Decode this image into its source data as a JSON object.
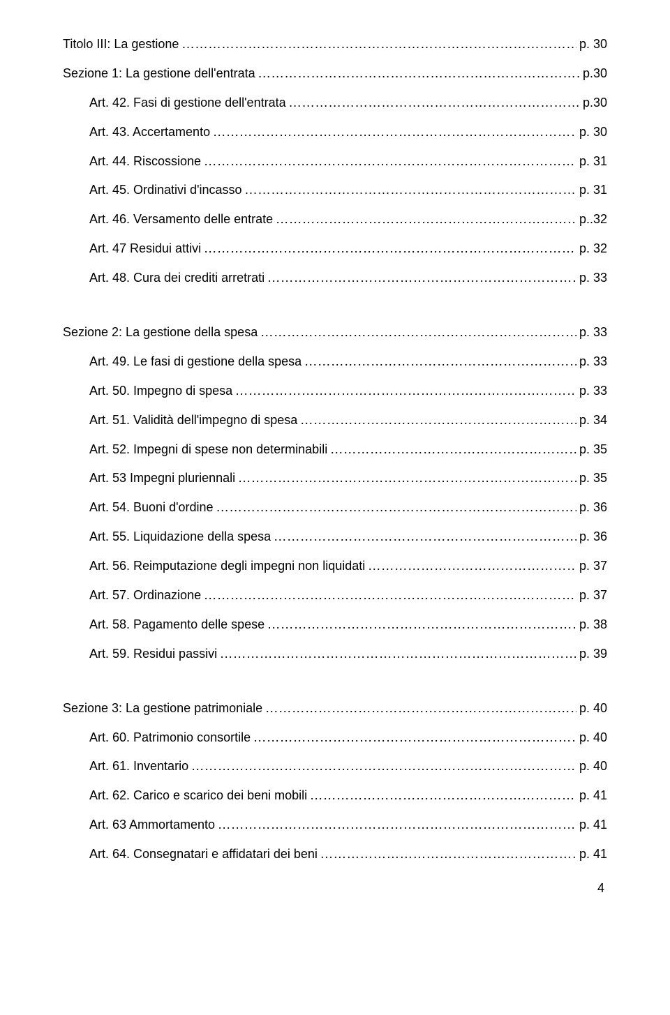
{
  "text_color": "#000000",
  "background_color": "#ffffff",
  "font_family": "Comic Sans MS",
  "base_font_size_pt": 13,
  "entries": [
    {
      "label": "Titolo III: La gestione",
      "page": "p. 30"
    },
    {
      "label": "Sezione 1: La gestione dell'entrata",
      "page": "p.30"
    },
    {
      "label": "Art. 42. Fasi di gestione dell'entrata",
      "page": "p.30"
    },
    {
      "label": "Art. 43. Accertamento",
      "page": "p. 30"
    },
    {
      "label": "Art. 44. Riscossione",
      "page": "p. 31"
    },
    {
      "label": "Art. 45. Ordinativi d'incasso",
      "page": "p. 31"
    },
    {
      "label": "Art. 46. Versamento delle entrate",
      "page": "p..32"
    },
    {
      "label": "Art. 47 Residui attivi",
      "page": "p. 32"
    },
    {
      "label": "Art. 48. Cura dei crediti arretrati",
      "page": "p. 33"
    },
    {
      "label": "Sezione 2: La gestione della spesa",
      "page": "p. 33"
    },
    {
      "label": "Art. 49. Le fasi di gestione della spesa",
      "page": "p.  33"
    },
    {
      "label": "Art. 50. Impegno di spesa",
      "page": "p. 33"
    },
    {
      "label": "Art. 51. Validità dell'impegno di spesa",
      "page": "p. 34"
    },
    {
      "label": "Art. 52. Impegni di spese non determinabili",
      "page": "p. 35"
    },
    {
      "label": "Art. 53  Impegni pluriennali",
      "page": "p. 35"
    },
    {
      "label": "Art. 54. Buoni d'ordine",
      "page": "p. 36"
    },
    {
      "label": "Art. 55. Liquidazione della spesa",
      "page": "p. 36"
    },
    {
      "label": "Art. 56. Reimputazione degli impegni non liquidati",
      "page": "p. 37"
    },
    {
      "label": "Art. 57. Ordinazione",
      "page": "p. 37"
    },
    {
      "label": "Art. 58. Pagamento delle spese",
      "page": "p. 38"
    },
    {
      "label": "Art. 59. Residui passivi",
      "page": "p. 39"
    },
    {
      "label": "Sezione 3:  La gestione patrimoniale",
      "page": "p.  40"
    },
    {
      "label": "Art. 60. Patrimonio consortile",
      "page": "p.  40"
    },
    {
      "label": "Art. 61. Inventario",
      "page": "p.  40"
    },
    {
      "label": "Art. 62. Carico e scarico dei beni mobili",
      "page": "p.  41"
    },
    {
      "label": "Art. 63 Ammortamento",
      "page": "p.  41"
    },
    {
      "label": "Art. 64. Consegnatari e affidatari dei beni",
      "page": "p.  41"
    }
  ],
  "page_number": "4"
}
